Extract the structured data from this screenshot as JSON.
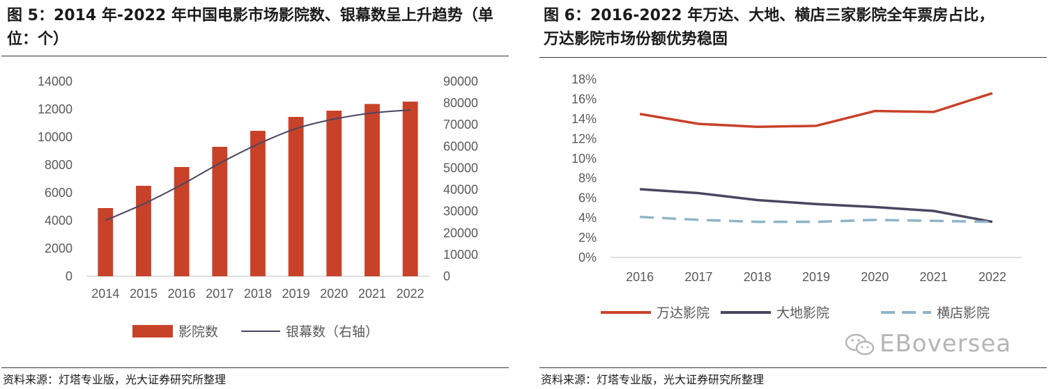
{
  "left": {
    "title": "图 5：2014 年-2022 年中国电影市场影院数、银幕数呈上升趋势（单位：个）",
    "source": "资料来源：灯塔专业版，光大证券研究所整理"
  },
  "right": {
    "title_line1": "图 6：2016-2022 年万达、大地、横店三家影院全年票房占比，",
    "title_line2": "万达影院市场份额优势稳固",
    "source": "资料来源：灯塔专业版，光大证券研究所整理"
  },
  "watermark": {
    "text": "EBoversea",
    "icon": "wechat-icon"
  },
  "chart_data": [
    {
      "type": "bar",
      "categories": [
        "2014",
        "2015",
        "2016",
        "2017",
        "2018",
        "2019",
        "2020",
        "2021",
        "2022"
      ],
      "series": [
        {
          "name": "影院数",
          "kind": "bar",
          "axis": "left",
          "values": [
            4900,
            6500,
            7850,
            9300,
            10450,
            11450,
            11900,
            12380,
            12550
          ],
          "color": "#C8422A"
        },
        {
          "name": "银幕数（右轴）",
          "kind": "line",
          "axis": "right",
          "values": [
            25800,
            33400,
            42300,
            52200,
            61000,
            68200,
            72600,
            75400,
            76800
          ],
          "color": "#4A4560"
        }
      ],
      "ylim_left": [
        0,
        14000
      ],
      "yticks_left": [
        "0",
        "2000",
        "4000",
        "6000",
        "8000",
        "10000",
        "12000",
        "14000"
      ],
      "ylim_right": [
        0,
        90000
      ],
      "yticks_right": [
        "0",
        "10000",
        "20000",
        "30000",
        "40000",
        "50000",
        "60000",
        "70000",
        "80000",
        "90000"
      ],
      "legend": [
        "影院数",
        "银幕数（右轴）"
      ],
      "legend_position": "bottom"
    },
    {
      "type": "line",
      "categories": [
        "2016",
        "2017",
        "2018",
        "2019",
        "2020",
        "2021",
        "2022"
      ],
      "series": [
        {
          "name": "万达影院",
          "values": [
            14.5,
            13.5,
            13.2,
            13.3,
            14.8,
            14.7,
            16.6
          ],
          "color": "#C8422A",
          "dash": false
        },
        {
          "name": "大地影院",
          "values": [
            6.9,
            6.5,
            5.8,
            5.4,
            5.1,
            4.7,
            3.6
          ],
          "color": "#4A4560",
          "dash": false
        },
        {
          "name": "横店影院",
          "values": [
            4.1,
            3.8,
            3.6,
            3.6,
            3.8,
            3.7,
            3.6
          ],
          "color": "#8FB4C7",
          "dash": true
        }
      ],
      "ylim": [
        0,
        18
      ],
      "yticks": [
        "0%",
        "2%",
        "4%",
        "6%",
        "8%",
        "10%",
        "12%",
        "14%",
        "16%",
        "18%"
      ],
      "legend": [
        "万达影院",
        "大地影院",
        "横店影院"
      ],
      "legend_position": "bottom"
    }
  ]
}
